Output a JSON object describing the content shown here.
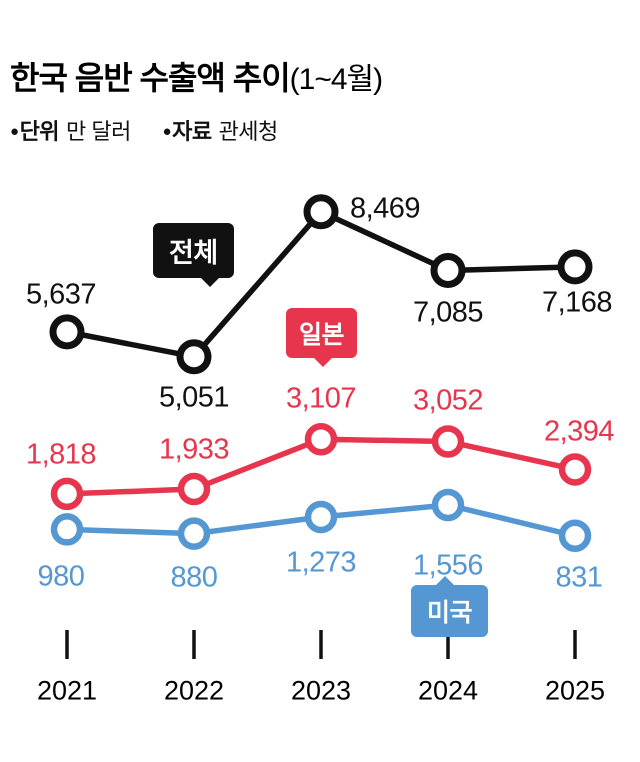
{
  "header": {
    "title": "한국 음반 수출액 추이",
    "title_suffix": "(1~4월)",
    "bullet": "●",
    "meta": [
      {
        "label": "단위",
        "value": "만 달러"
      },
      {
        "label": "자료",
        "value": "관세청"
      }
    ]
  },
  "chart_data": {
    "type": "line",
    "title": "한국 음반 수출액 추이(1~4월)",
    "unit": "만 달러",
    "source": "관세청",
    "categories": [
      "2021",
      "2022",
      "2023",
      "2024",
      "2025"
    ],
    "series": [
      {
        "key": "total",
        "name": "전체",
        "color": "#111111",
        "values": [
          5637,
          5051,
          8469,
          7085,
          7168
        ]
      },
      {
        "key": "japan",
        "name": "일본",
        "color": "#e8354e",
        "values": [
          1818,
          1933,
          3107,
          3052,
          2394
        ]
      },
      {
        "key": "usa",
        "name": "미국",
        "color": "#5597d2",
        "values": [
          980,
          880,
          1273,
          1556,
          831
        ]
      }
    ],
    "ylim": [
      0,
      9500
    ],
    "grid": false,
    "legend_position": "inline-badges",
    "value_label_format": "thousands-comma",
    "axis": {
      "x_ticks_visible": true,
      "y_axis_visible": false
    }
  }
}
